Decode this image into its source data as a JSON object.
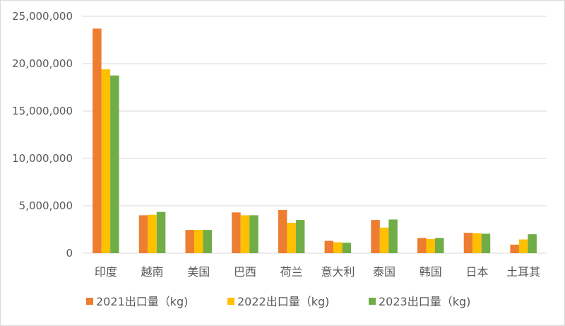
{
  "chart_data": {
    "type": "bar",
    "title": "",
    "xlabel": "",
    "ylabel": "",
    "categories": [
      "印度",
      "越南",
      "美国",
      "巴西",
      "荷兰",
      "意大利",
      "泰国",
      "韩国",
      "日本",
      "土耳其"
    ],
    "series": [
      {
        "name": "2021出口量（kg)",
        "color": "#ED7D31",
        "values": [
          23700000,
          4000000,
          2450000,
          4300000,
          4550000,
          1300000,
          3500000,
          1600000,
          2150000,
          900000
        ]
      },
      {
        "name": "2022出口量（kg)",
        "color": "#FFC000",
        "values": [
          19400000,
          4050000,
          2450000,
          4000000,
          3200000,
          1150000,
          2700000,
          1500000,
          2100000,
          1450000
        ]
      },
      {
        "name": "2023出口量（kg)",
        "color": "#70AD47",
        "values": [
          18750000,
          4350000,
          2450000,
          4000000,
          3500000,
          1100000,
          3550000,
          1600000,
          2050000,
          2000000
        ]
      }
    ],
    "yticks": [
      "0",
      "5,000,000",
      "10,000,000",
      "15,000,000",
      "20,000,000",
      "25,000,000"
    ],
    "ylim": [
      0,
      25000000
    ],
    "grid": true,
    "legend": "bottom"
  }
}
